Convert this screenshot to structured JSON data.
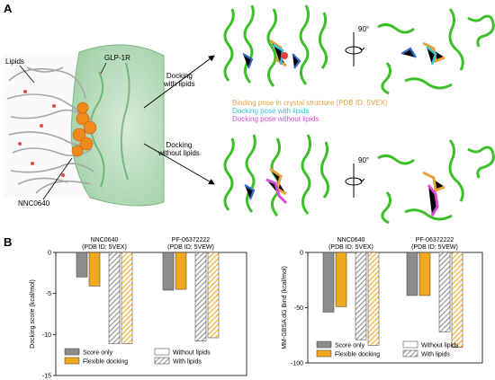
{
  "panel_a": {
    "letter": "A",
    "lipids_label": "Lipids",
    "receptor_label": "GLP-1R",
    "ligand_label": "NNC0640",
    "arrow_top_label": [
      "Docking",
      "with lipids"
    ],
    "arrow_bottom_label": [
      "Docking",
      "without lipids"
    ],
    "rotation_top": "90°",
    "rotation_bottom": "90°",
    "legend": [
      {
        "text": "Binding pose in crystal structure (PDB ID: 5VEX)",
        "color": "#e6a23c"
      },
      {
        "text": "Docking pose with lipids",
        "color": "#36c2d9"
      },
      {
        "text": "Docking pose without lipids",
        "color": "#d94bd6"
      }
    ]
  },
  "panel_b": {
    "letter": "B",
    "legend": {
      "score_only": "Score only",
      "flexible_docking": "Flexible docking",
      "without_lipids": "Without lipids",
      "with_lipids": "With lipids"
    }
  },
  "chart_data": [
    {
      "type": "bar",
      "ylabel": "Docking score (kcal/mol)",
      "ylim": [
        -15,
        0
      ],
      "yticks": [
        0,
        -5,
        -10,
        -15
      ],
      "groups": [
        {
          "label": [
            "NNC0640",
            "(PDB ID: 5VEX)"
          ],
          "series": [
            {
              "name": "Score only",
              "lipids": "without",
              "value": -3.0
            },
            {
              "name": "Flexible docking",
              "lipids": "without",
              "value": -4.1
            },
            {
              "name": "Score only",
              "lipids": "with",
              "value": -11.1
            },
            {
              "name": "Flexible docking",
              "lipids": "with",
              "value": -11.1
            }
          ]
        },
        {
          "label": [
            "PF-06372222",
            "(PDB ID: 5VEW)"
          ],
          "series": [
            {
              "name": "Score only",
              "lipids": "without",
              "value": -4.6
            },
            {
              "name": "Flexible docking",
              "lipids": "without",
              "value": -4.5
            },
            {
              "name": "Score only",
              "lipids": "with",
              "value": -10.8
            },
            {
              "name": "Flexible docking",
              "lipids": "with",
              "value": -10.4
            }
          ]
        }
      ]
    },
    {
      "type": "bar",
      "ylabel": "MM-GBSA dG Bind (kcal/mol)",
      "ylim": [
        -100,
        0
      ],
      "yticks": [
        0,
        -50,
        -100
      ],
      "groups": [
        {
          "label": [
            "NNC0640",
            "(PDB ID: 5VEX)"
          ],
          "series": [
            {
              "name": "Score only",
              "lipids": "without",
              "value": -54
            },
            {
              "name": "Flexible docking",
              "lipids": "without",
              "value": -49
            },
            {
              "name": "Score only",
              "lipids": "with",
              "value": -79
            },
            {
              "name": "Flexible docking",
              "lipids": "with",
              "value": -84
            }
          ]
        },
        {
          "label": [
            "PF-06372222",
            "(PDB ID: 5VEW)"
          ],
          "series": [
            {
              "name": "Score only",
              "lipids": "without",
              "value": -39
            },
            {
              "name": "Flexible docking",
              "lipids": "without",
              "value": -39
            },
            {
              "name": "Score only",
              "lipids": "with",
              "value": -72
            },
            {
              "name": "Flexible docking",
              "lipids": "with",
              "value": -86
            }
          ]
        }
      ]
    }
  ],
  "colors": {
    "score_only": "#8c8c8c",
    "flexible_docking": "#f2a81d",
    "helix": "#3dbf2a",
    "surface": "#e8f2ea"
  }
}
